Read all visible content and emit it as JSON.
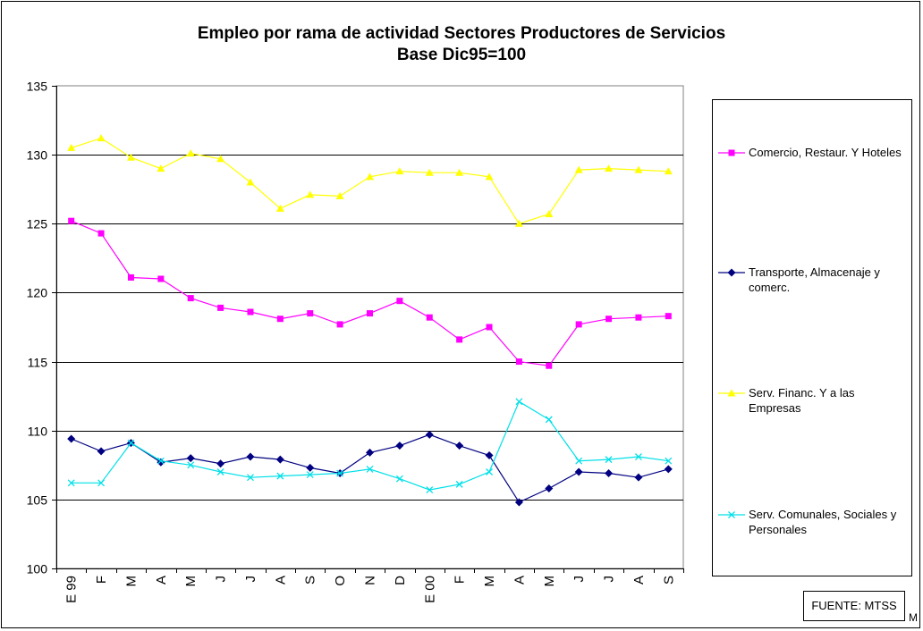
{
  "chart_data": {
    "type": "line",
    "title": "Empleo por rama de actividad Sectores Productores de Servicios",
    "subtitle": "Base Dic95=100",
    "categories": [
      "E 99",
      "F",
      "M",
      "A",
      "M",
      "J",
      "J",
      "A",
      "S",
      "O",
      "N",
      "D",
      "E 00",
      "F",
      "M",
      "A",
      "M",
      "J",
      "J",
      "A",
      "S"
    ],
    "ylim": [
      100,
      135
    ],
    "yticks": [
      100,
      105,
      110,
      115,
      120,
      125,
      130,
      135
    ],
    "grid": true,
    "legend_position": "right",
    "series": [
      {
        "name": "Comercio, Restaur. Y Hoteles",
        "color": "#ff00ff",
        "marker": "square",
        "values": [
          125.2,
          124.3,
          121.1,
          121.0,
          119.6,
          118.9,
          118.6,
          118.1,
          118.5,
          117.7,
          118.5,
          119.4,
          118.2,
          116.6,
          117.5,
          115.0,
          114.7,
          117.7,
          118.1,
          118.2,
          118.3
        ]
      },
      {
        "name": "Transporte, Almacenaje y comerc.",
        "color": "#000080",
        "marker": "diamond",
        "values": [
          109.4,
          108.5,
          109.1,
          107.7,
          108.0,
          107.6,
          108.1,
          107.9,
          107.3,
          106.9,
          108.4,
          108.9,
          109.7,
          108.9,
          108.2,
          104.8,
          105.8,
          107.0,
          106.9,
          106.6,
          107.2
        ]
      },
      {
        "name": "Serv. Financ. Y a las Empresas",
        "color": "#ffff00",
        "marker": "triangle",
        "values": [
          130.5,
          131.2,
          129.8,
          129.0,
          130.1,
          129.7,
          128.0,
          126.1,
          127.1,
          127.0,
          128.4,
          128.8,
          128.7,
          128.7,
          128.4,
          125.0,
          125.7,
          128.9,
          129.0,
          128.9,
          128.8
        ]
      },
      {
        "name": "Serv. Comunales, Sociales y Personales",
        "color": "#00e0e8",
        "marker": "x",
        "values": [
          106.2,
          106.2,
          109.1,
          107.8,
          107.5,
          107.0,
          106.6,
          106.7,
          106.8,
          106.9,
          107.2,
          106.5,
          105.7,
          106.1,
          107.0,
          112.1,
          110.8,
          107.8,
          107.9,
          108.1,
          107.8
        ]
      }
    ],
    "source": "FUENTE: MTSS",
    "source_overlap": "Fuente: M"
  }
}
